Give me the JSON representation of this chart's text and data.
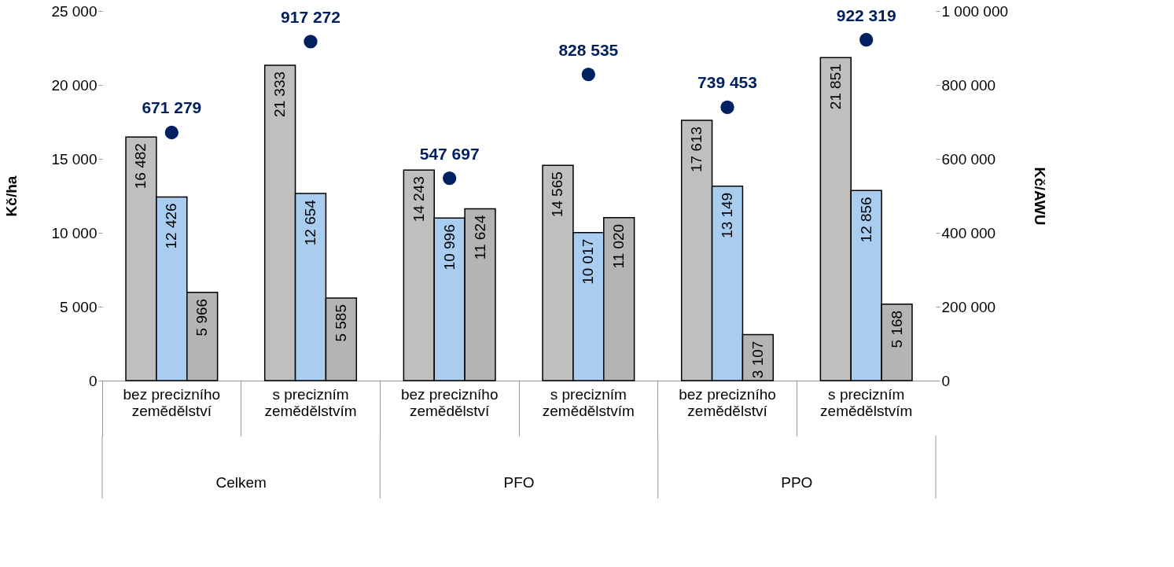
{
  "chart_data": {
    "type": "bar",
    "categories": [
      "bez precizního zemědělství",
      "s precizním zemědělstvím",
      "bez precizního zemědělství",
      "s precizním zemědělstvím",
      "bez precizního zemědělství",
      "s precizním zemědělstvím"
    ],
    "series": [
      {
        "color": "#bfbfbf",
        "values": [
          16482,
          21333,
          14243,
          14565,
          17613,
          21851
        ]
      },
      {
        "color": "#a9cdee",
        "values": [
          12426,
          12654,
          10996,
          10017,
          13149,
          12856
        ]
      },
      {
        "color": "#b4b4b4",
        "values": [
          5966,
          5585,
          11624,
          11020,
          3107,
          5168
        ]
      },
      {
        "type": "scatter",
        "axis": "y2",
        "color": "#002060",
        "marker": "circle",
        "values": [
          671279,
          917272,
          547697,
          828535,
          739453,
          922319
        ]
      }
    ],
    "ylabel": "Kč/ha",
    "y2label": "Kč/AWU",
    "ylim": [
      0,
      25000
    ],
    "yticks": [
      0,
      {
        "value": 5000,
        "label": "5 000"
      },
      {
        "value": 10000,
        "label": "10 000"
      },
      {
        "value": 15000,
        "label": "15 000"
      },
      {
        "value": 20000,
        "label": "20 000"
      },
      {
        "value": 25000,
        "label": "25 000"
      }
    ],
    "y2lim": [
      0,
      1000000
    ],
    "y2ticks": [
      0,
      {
        "value": 200000,
        "label": "200 000"
      },
      {
        "value": 400000,
        "label": "400 000"
      },
      {
        "value": 600000,
        "label": "600 000"
      },
      {
        "value": 800000,
        "label": "800 000"
      },
      {
        "value": 1000000,
        "label": "1 000 000"
      }
    ],
    "annotations": [
      "Celkem",
      "PFO",
      "PPO"
    ],
    "data_labels": true,
    "grid": false
  }
}
